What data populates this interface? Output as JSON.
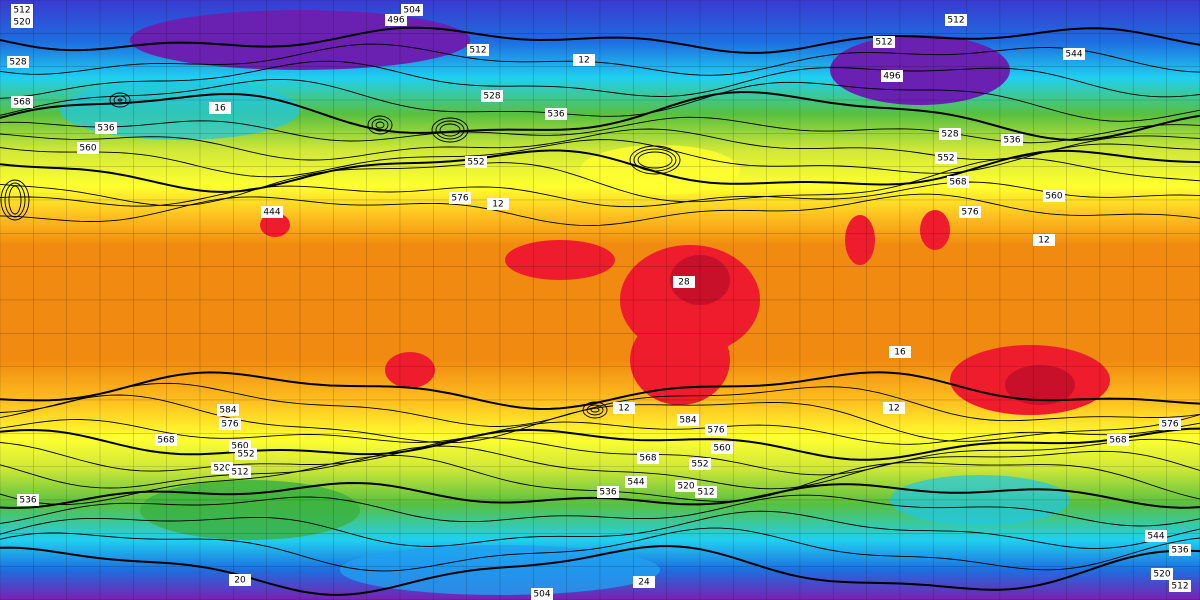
{
  "contour_labels": [
    512,
    520,
    504,
    496,
    512,
    528,
    568,
    536,
    560,
    528,
    536,
    552,
    576,
    512,
    512,
    496,
    544,
    528,
    552,
    536,
    568,
    576,
    560,
    444,
    584,
    576,
    568,
    560,
    552,
    520,
    512,
    536,
    584,
    576,
    560,
    568,
    552,
    544,
    536,
    520,
    512,
    568,
    576,
    504,
    520,
    512,
    544,
    536
  ],
  "temperature_labels": [
    12,
    16,
    12,
    28,
    16,
    12,
    12,
    12,
    20,
    24
  ]
}
